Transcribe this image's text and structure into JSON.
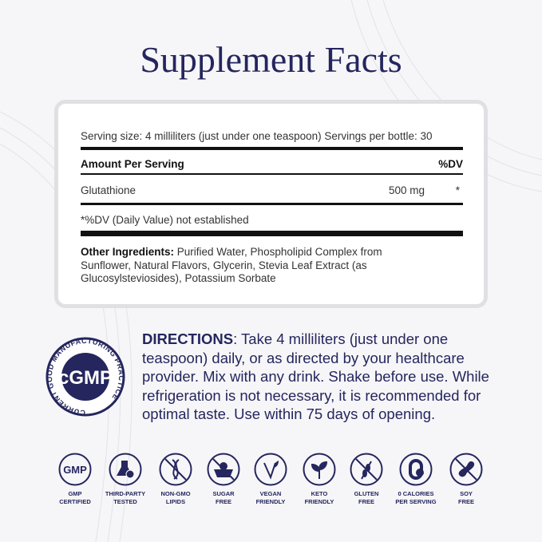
{
  "title": "Supplement Facts",
  "facts": {
    "serving": "Serving size: 4 milliliters (just under one teaspoon) Servings per bottle: 30",
    "amount_header": "Amount Per Serving",
    "dv_header": "%DV",
    "ingredient": {
      "name": "Glutathione",
      "amount": "500 mg",
      "dv": "*"
    },
    "footnote": "*%DV (Daily Value) not established",
    "other_label": "Other Ingredients:",
    "other_text": " Purified Water, Phospholipid Complex from Sunflower, Natural Flavors, Glycerin, Stevia Leaf Extract (as Glucosylsteviosides), Potassium Sorbate"
  },
  "directions": {
    "label": "DIRECTIONS",
    "text": ": Take 4 milliliters  (just under one teaspoon) daily, or as directed by your healthcare provider. Mix with any drink. Shake before use. While refrigeration is not necessary, it is recommended for optimal taste. Use within 75 days of opening."
  },
  "seal": {
    "center": "cGMP",
    "ring": "CURRENT GOOD MANUFACTURING PRACTICE"
  },
  "badges": [
    {
      "icon": "gmp-icon",
      "l1": "GMP",
      "l2": "CERTIFIED"
    },
    {
      "icon": "flask-icon",
      "l1": "THIRD-PARTY",
      "l2": "TESTED"
    },
    {
      "icon": "dna-icon",
      "l1": "NON-GMO",
      "l2": "LIPIDS"
    },
    {
      "icon": "sugar-bowl-icon",
      "l1": "SUGAR",
      "l2": "FREE"
    },
    {
      "icon": "vegan-icon",
      "l1": "VEGAN",
      "l2": "FRIENDLY"
    },
    {
      "icon": "leaf-icon",
      "l1": "KETO",
      "l2": "FRIENDLY"
    },
    {
      "icon": "wheat-icon",
      "l1": "GLUTEN",
      "l2": "FREE"
    },
    {
      "icon": "calorie-icon",
      "l1": "0 CALORIES",
      "l2": "PER SERVING"
    },
    {
      "icon": "soy-icon",
      "l1": "SOY",
      "l2": "FREE"
    }
  ],
  "colors": {
    "navy": "#25265e",
    "panel_border": "#e0e0e4"
  }
}
